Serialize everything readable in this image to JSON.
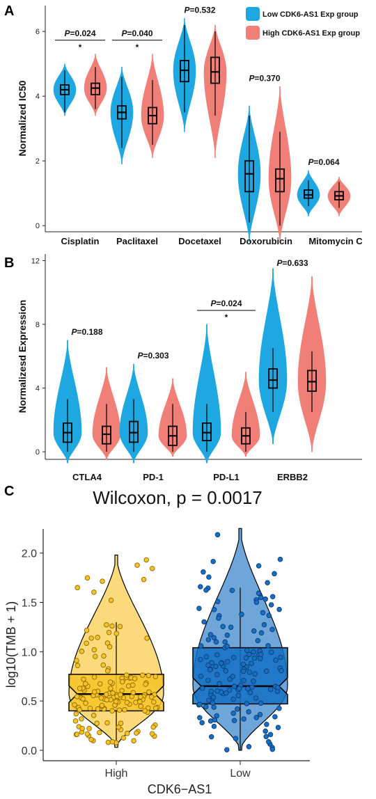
{
  "panel_labels": {
    "a": "A",
    "b": "B",
    "c": "C"
  },
  "legend": {
    "low": {
      "label": "Low CDK6-AS1 Exp group",
      "color": "#1ea7e1"
    },
    "high": {
      "label": "High CDK6-AS1 Exp group",
      "color": "#f07f78"
    }
  },
  "chart_data": [
    {
      "panel": "A",
      "type": "violin",
      "ylabel": "Normalized IC50",
      "ylim": [
        -1.2,
        6.8
      ],
      "yticks": [
        0,
        2,
        4,
        6
      ],
      "categories": [
        "Cisplatin",
        "Paclitaxel",
        "Docetaxel",
        "Doxorubicin",
        "Mitomycin C"
      ],
      "pvalues": [
        {
          "p": "=0.024",
          "sig": "*"
        },
        {
          "p": "=0.040",
          "sig": "*"
        },
        {
          "p": "=0.532",
          "sig": ""
        },
        {
          "p": "=0.370",
          "sig": ""
        },
        {
          "p": "=0.064",
          "sig": ""
        }
      ],
      "series": [
        {
          "name": "Low CDK6-AS1 Exp group",
          "color": "#1ea7e1",
          "stats": [
            {
              "min": 3.5,
              "q1": 4.05,
              "median": 4.2,
              "q3": 4.35,
              "max": 4.8,
              "lo": 3.4,
              "hi": 5.0
            },
            {
              "min": 2.4,
              "q1": 3.3,
              "median": 3.5,
              "q3": 3.7,
              "max": 4.6,
              "lo": 1.9,
              "hi": 4.9
            },
            {
              "min": 3.5,
              "q1": 4.45,
              "median": 4.8,
              "q3": 5.1,
              "max": 6.2,
              "lo": 2.9,
              "hi": 6.4
            },
            {
              "min": 0.1,
              "q1": 1.05,
              "median": 1.6,
              "q3": 2.0,
              "max": 3.4,
              "lo": -0.5,
              "hi": 3.7
            },
            {
              "min": 0.6,
              "q1": 0.85,
              "median": 0.95,
              "q3": 1.1,
              "max": 1.4,
              "lo": 0.3,
              "hi": 1.7
            }
          ]
        },
        {
          "name": "High CDK6-AS1 Exp group",
          "color": "#f07f78",
          "stats": [
            {
              "min": 3.6,
              "q1": 4.05,
              "median": 4.25,
              "q3": 4.4,
              "max": 4.9,
              "lo": 3.4,
              "hi": 5.3
            },
            {
              "min": 2.5,
              "q1": 3.15,
              "median": 3.4,
              "q3": 3.65,
              "max": 4.5,
              "lo": 2.1,
              "hi": 5.3
            },
            {
              "min": 3.4,
              "q1": 4.4,
              "median": 4.75,
              "q3": 5.2,
              "max": 6.0,
              "lo": 2.1,
              "hi": 6.2
            },
            {
              "min": 0.0,
              "q1": 1.05,
              "median": 1.45,
              "q3": 1.75,
              "max": 2.9,
              "lo": -0.5,
              "hi": 4.3
            },
            {
              "min": 0.55,
              "q1": 0.8,
              "median": 0.92,
              "q3": 1.05,
              "max": 1.35,
              "lo": 0.3,
              "hi": 1.5
            }
          ]
        }
      ]
    },
    {
      "panel": "B",
      "type": "violin",
      "ylabel": "Normalizesd Expression",
      "ylim": [
        -1,
        12.5
      ],
      "yticks": [
        0,
        4,
        8,
        12
      ],
      "categories": [
        "CTLA4",
        "PD-1",
        "PD-L1",
        "ERBB2"
      ],
      "pvalues": [
        {
          "p": "=0.188",
          "sig": ""
        },
        {
          "p": "=0.303",
          "sig": ""
        },
        {
          "p": "=0.024",
          "sig": "*"
        },
        {
          "p": "=0.633",
          "sig": ""
        }
      ],
      "series": [
        {
          "name": "Low CDK6-AS1 Exp group",
          "color": "#1ea7e1",
          "stats": [
            {
              "min": 0.0,
              "q1": 0.6,
              "median": 1.2,
              "q3": 1.8,
              "max": 3.3,
              "lo": -0.7,
              "hi": 7.0
            },
            {
              "min": 0.0,
              "q1": 0.6,
              "median": 1.2,
              "q3": 1.9,
              "max": 3.3,
              "lo": -0.7,
              "hi": 5.5
            },
            {
              "min": 0.0,
              "q1": 0.7,
              "median": 1.2,
              "q3": 1.8,
              "max": 3.0,
              "lo": -0.7,
              "hi": 8.0
            },
            {
              "min": 2.5,
              "q1": 4.0,
              "median": 4.5,
              "q3": 5.2,
              "max": 6.5,
              "lo": 0.5,
              "hi": 11.5
            }
          ]
        },
        {
          "name": "High CDK6-AS1 Exp group",
          "color": "#f07f78",
          "stats": [
            {
              "min": 0.0,
              "q1": 0.5,
              "median": 1.1,
              "q3": 1.6,
              "max": 3.0,
              "lo": -0.5,
              "hi": 5.3
            },
            {
              "min": 0.0,
              "q1": 0.4,
              "median": 1.0,
              "q3": 1.6,
              "max": 3.0,
              "lo": -0.3,
              "hi": 4.6
            },
            {
              "min": 0.0,
              "q1": 0.5,
              "median": 1.0,
              "q3": 1.5,
              "max": 2.5,
              "lo": -0.3,
              "hi": 5.0
            },
            {
              "min": 2.5,
              "q1": 3.8,
              "median": 4.4,
              "q3": 5.1,
              "max": 6.3,
              "lo": 0.0,
              "hi": 11.0
            }
          ]
        }
      ]
    },
    {
      "panel": "C",
      "type": "violin",
      "title": "Wilcoxon, p = 0.0017",
      "xlabel": "CDK6−AS1",
      "ylabel": "log10(TMB + 1)",
      "ylim": [
        0,
        2.28
      ],
      "yticks": [
        0.0,
        0.5,
        1.0,
        1.5,
        2.0
      ],
      "categories": [
        "High",
        "Low"
      ],
      "series": [
        {
          "name": "High",
          "color": "#f7c328",
          "edge": "#8a6a00",
          "stats": {
            "min": 0.05,
            "q1": 0.4,
            "median": 0.57,
            "q3": 0.77,
            "max": 1.3,
            "lo": 0.03,
            "hi": 1.98
          }
        },
        {
          "name": "Low",
          "color": "#1570c4",
          "edge": "#0d3a70",
          "stats": {
            "min": 0.0,
            "q1": 0.47,
            "median": 0.65,
            "q3": 1.04,
            "max": 1.65,
            "lo": 0.0,
            "hi": 2.25
          }
        }
      ]
    }
  ]
}
